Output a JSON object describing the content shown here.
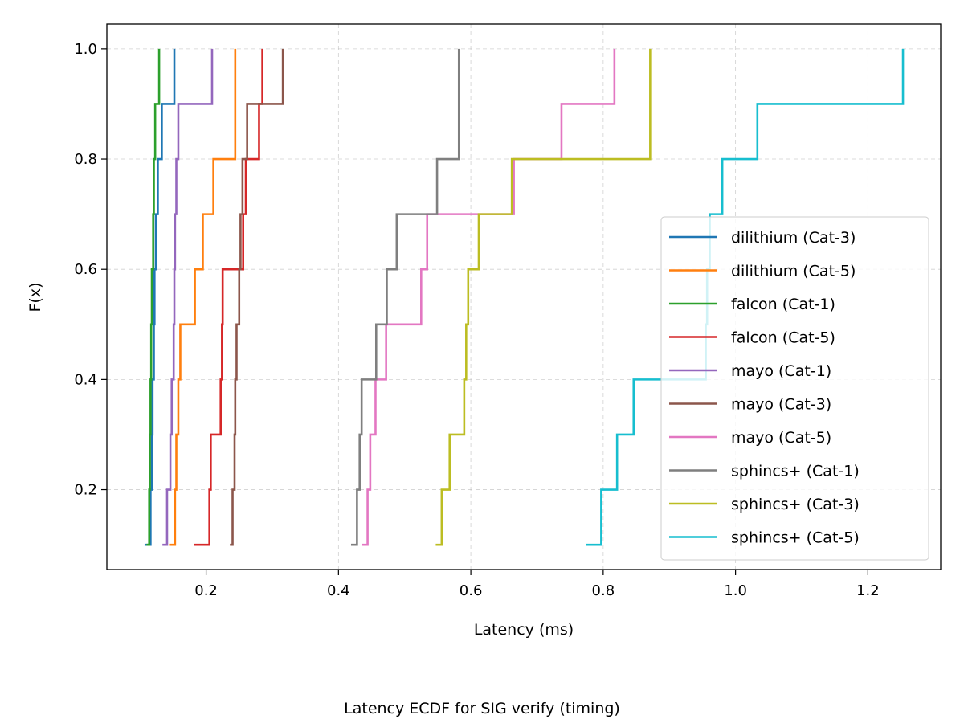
{
  "chart_data": {
    "type": "line",
    "subtype": "ecdf-step",
    "caption": "Latency ECDF for SIG verify (timing)",
    "xlabel": "Latency (ms)",
    "ylabel": "F(x)",
    "xlim": [
      0.05,
      1.31
    ],
    "ylim": [
      0.055,
      1.045
    ],
    "xticks": [
      0.2,
      0.4,
      0.6,
      0.8,
      1.0,
      1.2
    ],
    "xtick_labels": [
      "0.2",
      "0.4",
      "0.6",
      "0.8",
      "1.0",
      "1.2"
    ],
    "yticks": [
      0.2,
      0.4,
      0.6,
      0.8,
      1.0
    ],
    "ytick_labels": [
      "0.2",
      "0.4",
      "0.6",
      "0.8",
      "1.0"
    ],
    "grid": true,
    "legend_position": "lower-right",
    "series": [
      {
        "name": "dilithium (Cat-3)",
        "color": "#1f77b4",
        "x": [
          0.111,
          0.116,
          0.118,
          0.119,
          0.121,
          0.122,
          0.124,
          0.127,
          0.133,
          0.152
        ]
      },
      {
        "name": "dilithium (Cat-5)",
        "color": "#ff7f0e",
        "x": [
          0.148,
          0.153,
          0.155,
          0.158,
          0.161,
          0.183,
          0.195,
          0.211,
          0.244,
          0.244
        ]
      },
      {
        "name": "falcon (Cat-1)",
        "color": "#2ca02c",
        "x": [
          0.114,
          0.114,
          0.115,
          0.116,
          0.117,
          0.118,
          0.12,
          0.121,
          0.123,
          0.129
        ]
      },
      {
        "name": "falcon (Cat-5)",
        "color": "#d62728",
        "x": [
          0.186,
          0.205,
          0.207,
          0.222,
          0.224,
          0.225,
          0.256,
          0.26,
          0.28,
          0.285
        ]
      },
      {
        "name": "mayo (Cat-1)",
        "color": "#9467bd",
        "x": [
          0.138,
          0.141,
          0.146,
          0.148,
          0.151,
          0.152,
          0.153,
          0.155,
          0.158,
          0.209
        ]
      },
      {
        "name": "mayo (Cat-3)",
        "color": "#8c564b",
        "x": [
          0.24,
          0.24,
          0.243,
          0.244,
          0.246,
          0.25,
          0.252,
          0.255,
          0.262,
          0.316
        ]
      },
      {
        "name": "mayo (Cat-5)",
        "color": "#e377c2",
        "x": [
          0.44,
          0.444,
          0.448,
          0.456,
          0.472,
          0.525,
          0.534,
          0.665,
          0.737,
          0.817
        ]
      },
      {
        "name": "sphincs+ (Cat-1)",
        "color": "#7f7f7f",
        "x": [
          0.423,
          0.428,
          0.432,
          0.435,
          0.457,
          0.473,
          0.488,
          0.549,
          0.582,
          0.582
        ]
      },
      {
        "name": "sphincs+ (Cat-3)",
        "color": "#bcbd22",
        "x": [
          0.551,
          0.556,
          0.568,
          0.59,
          0.593,
          0.596,
          0.612,
          0.662,
          0.871,
          0.871
        ]
      },
      {
        "name": "sphincs+ (Cat-5)",
        "color": "#17becf",
        "x": [
          0.778,
          0.797,
          0.821,
          0.846,
          0.955,
          0.957,
          0.961,
          0.98,
          1.033,
          1.253
        ]
      }
    ]
  }
}
